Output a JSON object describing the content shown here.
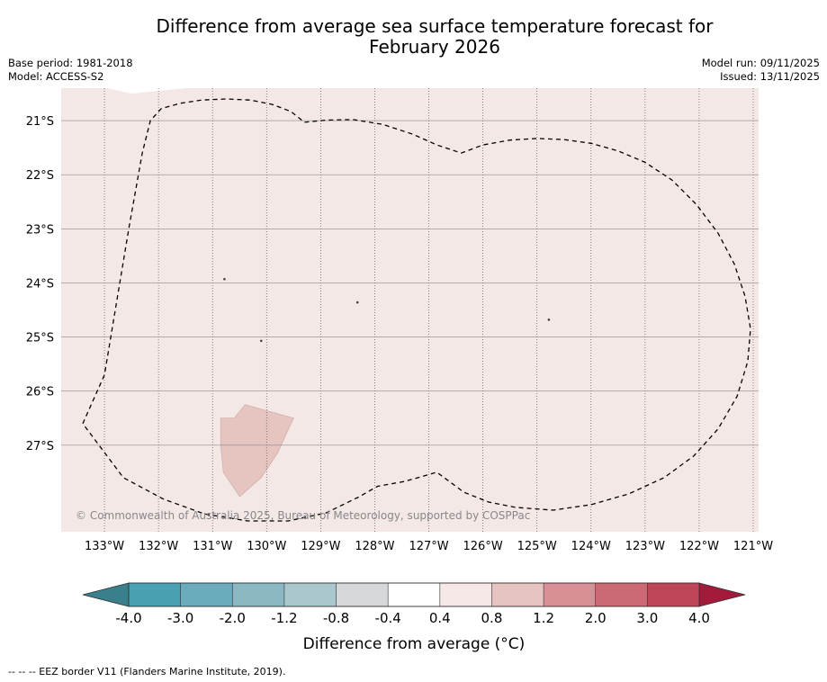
{
  "title_line1": "Difference from average sea surface temperature forecast for",
  "title_line2": "February 2026",
  "base_period": "Base period: 1981-2018",
  "model": "Model: ACCESS-S2",
  "model_run": "Model run: 09/11/2025",
  "issued": "Issued: 13/11/2025",
  "copyright": "© Commonwealth of Australia 2025, Bureau of Meteorology, supported by COSPPac",
  "footnote": "--  --  -- EEZ border V11 (Flanders Marine Institute, 2019).",
  "map": {
    "lon_range": [
      -133.8,
      -120.9
    ],
    "lat_range": [
      -28.6,
      -20.4
    ],
    "lon_ticks": [
      {
        "value": -133,
        "label": "133°W"
      },
      {
        "value": -132,
        "label": "132°W"
      },
      {
        "value": -131,
        "label": "131°W"
      },
      {
        "value": -130,
        "label": "130°W"
      },
      {
        "value": -129,
        "label": "129°W"
      },
      {
        "value": -128,
        "label": "128°W"
      },
      {
        "value": -127,
        "label": "127°W"
      },
      {
        "value": -126,
        "label": "126°W"
      },
      {
        "value": -125,
        "label": "125°W"
      },
      {
        "value": -124,
        "label": "124°W"
      },
      {
        "value": -123,
        "label": "123°W"
      },
      {
        "value": -122,
        "label": "122°W"
      },
      {
        "value": -121,
        "label": "121°W"
      }
    ],
    "lat_ticks": [
      {
        "value": -21,
        "label": "21°S"
      },
      {
        "value": -22,
        "label": "22°S"
      },
      {
        "value": -23,
        "label": "23°S"
      },
      {
        "value": -24,
        "label": "24°S"
      },
      {
        "value": -25,
        "label": "25°S"
      },
      {
        "value": -26,
        "label": "26°S"
      },
      {
        "value": -27,
        "label": "27°S"
      }
    ],
    "background_anomaly_class": "0.4 to 0.8",
    "background_color": "#f4e8e7",
    "patch_anomaly_class": "0.8 to 1.2",
    "patch_color": "#e6c4c0",
    "warm_patch_lonlat": [
      [
        -130.6,
        -26.5
      ],
      [
        -130.4,
        -26.25
      ],
      [
        -129.5,
        -26.5
      ],
      [
        -129.8,
        -27.15
      ],
      [
        -130.1,
        -27.6
      ],
      [
        -130.5,
        -27.95
      ],
      [
        -130.8,
        -27.5
      ],
      [
        -130.85,
        -27.0
      ],
      [
        -130.85,
        -26.5
      ]
    ],
    "north_patch_lonlat": [
      [
        -132.95,
        -20.4
      ],
      [
        -132.5,
        -20.5
      ],
      [
        -131.5,
        -20.4
      ]
    ],
    "eez_border_lonlat": [
      [
        -133.4,
        -26.6
      ],
      [
        -133.0,
        -25.7
      ],
      [
        -132.8,
        -24.5
      ],
      [
        -132.55,
        -23.0
      ],
      [
        -132.3,
        -21.6
      ],
      [
        -132.15,
        -21.0
      ],
      [
        -131.95,
        -20.78
      ],
      [
        -131.6,
        -20.68
      ],
      [
        -131.2,
        -20.62
      ],
      [
        -130.75,
        -20.6
      ],
      [
        -130.3,
        -20.62
      ],
      [
        -129.9,
        -20.7
      ],
      [
        -129.55,
        -20.83
      ],
      [
        -129.3,
        -21.03
      ],
      [
        -128.9,
        -20.99
      ],
      [
        -128.4,
        -20.98
      ],
      [
        -127.85,
        -21.07
      ],
      [
        -127.3,
        -21.25
      ],
      [
        -126.85,
        -21.45
      ],
      [
        -126.4,
        -21.6
      ],
      [
        -126.0,
        -21.45
      ],
      [
        -125.5,
        -21.36
      ],
      [
        -125.0,
        -21.33
      ],
      [
        -124.5,
        -21.35
      ],
      [
        -124.0,
        -21.42
      ],
      [
        -123.5,
        -21.56
      ],
      [
        -123.0,
        -21.77
      ],
      [
        -122.5,
        -22.1
      ],
      [
        -122.05,
        -22.55
      ],
      [
        -121.65,
        -23.08
      ],
      [
        -121.35,
        -23.65
      ],
      [
        -121.15,
        -24.25
      ],
      [
        -121.05,
        -24.85
      ],
      [
        -121.1,
        -25.45
      ],
      [
        -121.3,
        -26.1
      ],
      [
        -121.65,
        -26.7
      ],
      [
        -122.1,
        -27.2
      ],
      [
        -122.65,
        -27.6
      ],
      [
        -123.3,
        -27.9
      ],
      [
        -124.0,
        -28.1
      ],
      [
        -124.7,
        -28.2
      ],
      [
        -125.4,
        -28.15
      ],
      [
        -125.9,
        -28.05
      ],
      [
        -126.35,
        -27.87
      ],
      [
        -126.85,
        -27.5
      ],
      [
        -127.45,
        -27.67
      ],
      [
        -127.95,
        -27.76
      ],
      [
        -128.3,
        -27.96
      ],
      [
        -128.9,
        -28.25
      ],
      [
        -129.6,
        -28.4
      ],
      [
        -130.35,
        -28.4
      ],
      [
        -131.15,
        -28.27
      ],
      [
        -131.9,
        -28.0
      ],
      [
        -132.65,
        -27.6
      ],
      [
        -133.4,
        -26.6
      ]
    ],
    "islands_lonlat": [
      [
        -130.78,
        -23.93
      ],
      [
        -128.32,
        -24.36
      ],
      [
        -124.78,
        -24.68
      ],
      [
        -130.1,
        -25.07
      ]
    ]
  },
  "colorbar": {
    "bins": [
      {
        "color": "#4aa0b3"
      },
      {
        "color": "#6aacbb"
      },
      {
        "color": "#8bb8c3"
      },
      {
        "color": "#a9c7cc"
      },
      {
        "color": "#d4d8d9"
      },
      {
        "color": "#ffffff"
      },
      {
        "color": "#f5e8e7"
      },
      {
        "color": "#e6c4c1"
      },
      {
        "color": "#d98f96"
      },
      {
        "color": "#cb6a75"
      },
      {
        "color": "#bf4659"
      }
    ],
    "low_extend_color": "#3a7f8c",
    "high_extend_color": "#a31a3a",
    "tick_labels": [
      "-4.0",
      "-3.0",
      "-2.0",
      "-1.2",
      "-0.8",
      "-0.4",
      "0.4",
      "0.8",
      "1.2",
      "2.0",
      "3.0",
      "4.0"
    ],
    "label": "Difference from average (°C)"
  }
}
